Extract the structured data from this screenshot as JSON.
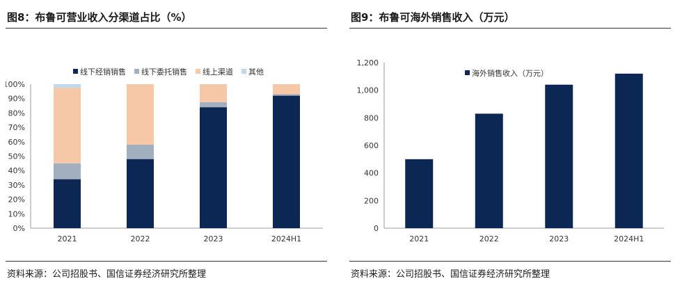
{
  "panels": [
    {
      "title": "图8：布鲁可营业收入分渠道占比（%）",
      "source": "资料来源：公司招股书、国信证券经济研究所整理"
    },
    {
      "title": "图9：布鲁可海外销售收入（万元）",
      "source": "资料来源：公司招股书、国信证券经济研究所整理"
    }
  ],
  "chart_data": [
    {
      "type": "bar",
      "stacked": true,
      "categories": [
        "2021",
        "2022",
        "2023",
        "2024H1"
      ],
      "series": [
        {
          "name": "线下经销销售",
          "color": "#0c2754",
          "values": [
            34,
            48,
            84,
            92
          ]
        },
        {
          "name": "线下委托销售",
          "color": "#a2afbe",
          "values": [
            11,
            10,
            3.5,
            1
          ]
        },
        {
          "name": "线上渠道",
          "color": "#f7c8a7",
          "values": [
            52.5,
            42,
            12.5,
            7
          ]
        },
        {
          "name": "其他",
          "color": "#bed8ec",
          "values": [
            2.5,
            0,
            0,
            0
          ]
        }
      ],
      "yticks": [
        "0%",
        "10%",
        "20%",
        "30%",
        "40%",
        "50%",
        "60%",
        "70%",
        "80%",
        "90%",
        "100%"
      ],
      "ylim": [
        0,
        100
      ],
      "legend": "top"
    },
    {
      "type": "bar",
      "categories": [
        "2021",
        "2022",
        "2023",
        "2024H1"
      ],
      "series": [
        {
          "name": "海外销售收入（万元）",
          "color": "#0c2754",
          "values": [
            500,
            830,
            1040,
            1120
          ]
        }
      ],
      "yticks": [
        "0",
        "200",
        "400",
        "600",
        "800",
        "1,000",
        "1,200"
      ],
      "ylim": [
        0,
        1200
      ],
      "legend": "top-left"
    }
  ]
}
